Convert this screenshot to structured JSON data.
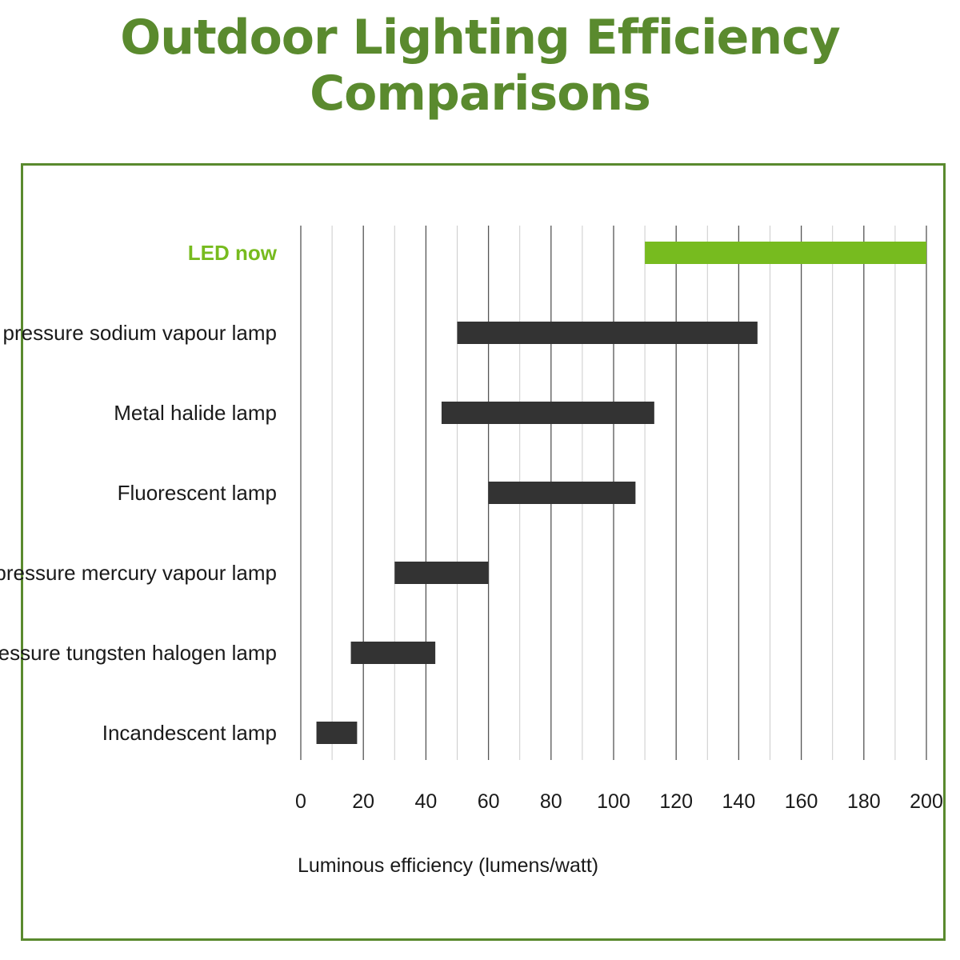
{
  "title": "Outdoor Lighting Efficiency Comparisons",
  "colors": {
    "title": "#5a8a2e",
    "frame": "#5a8a2e",
    "highlight_bar": "#77bb1f",
    "bar": "#333333",
    "major_grid": "#555555",
    "minor_grid": "#cccccc"
  },
  "chart_data": {
    "type": "bar",
    "orientation": "horizontal-range",
    "title": "Outdoor Lighting Efficiency Comparisons",
    "xlabel": "Luminous efficiency (lumens/watt)",
    "ylabel": "",
    "xlim": [
      0,
      200
    ],
    "xticks": [
      0,
      20,
      40,
      60,
      80,
      100,
      120,
      140,
      160,
      180,
      200
    ],
    "grid": "vertical, major every 20 with minor every 10",
    "legend": "none",
    "categories": [
      "LED now",
      "High pressure sodium vapour lamp",
      "Metal halide lamp",
      "Fluorescent lamp",
      "High pressure mercury vapour lamp",
      "Low-pressure tungsten halogen lamp",
      "Incandescent lamp"
    ],
    "ranges": [
      [
        110,
        200
      ],
      [
        50,
        146
      ],
      [
        45,
        113
      ],
      [
        60,
        107
      ],
      [
        30,
        60
      ],
      [
        16,
        43
      ],
      [
        5,
        18
      ]
    ],
    "highlight": "LED now"
  }
}
